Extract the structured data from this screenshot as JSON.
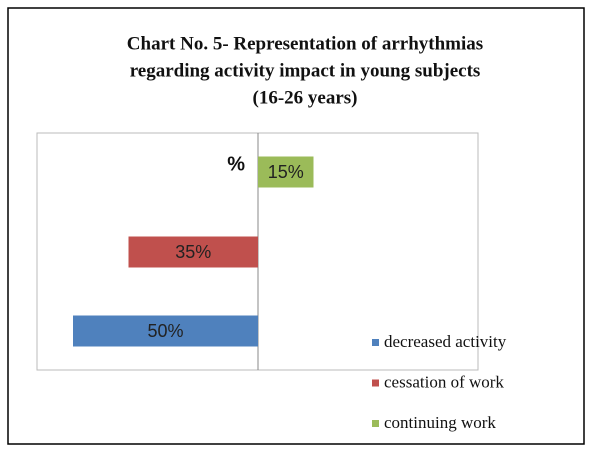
{
  "chart_data": {
    "type": "bar",
    "orientation": "horizontal",
    "title": [
      "Chart No. 5- Representation of arrhythmias",
      "regarding activity impact in young subjects",
      "(16-26 years)"
    ],
    "axis_label": "%",
    "series": [
      {
        "name": "decreased activity",
        "color": "#4f81bd",
        "side": "left",
        "values": [
          50
        ],
        "value_labels": [
          "50%"
        ]
      },
      {
        "name": "cessation of work",
        "color": "#c0504d",
        "side": "left",
        "values": [
          35
        ],
        "value_labels": [
          "35%"
        ]
      },
      {
        "name": "continuing work",
        "color": "#9bbb59",
        "side": "right",
        "values": [
          15
        ],
        "value_labels": [
          "15%"
        ]
      }
    ],
    "legend": "bottom-right"
  }
}
